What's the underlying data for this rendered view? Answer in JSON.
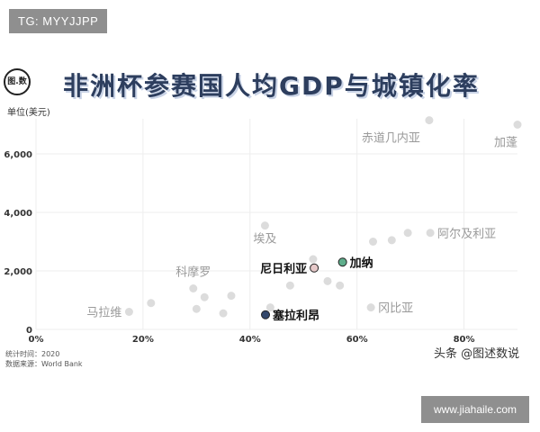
{
  "watermarks": {
    "top": "TG: MYYJJPP",
    "right": "头条 @图述数说",
    "bottom": "www.jiahaile.com"
  },
  "logo_text": "图.数",
  "footer": {
    "line1": "统计时间：2020",
    "line2": "数据来源：World Bank"
  },
  "chart_data": {
    "type": "scatter",
    "title": "非洲杯参赛国人均GDP与城镇化率",
    "ylabel": "单位(美元)",
    "xlabel": "",
    "xlim": [
      0,
      90
    ],
    "ylim": [
      0,
      7200
    ],
    "x_ticks": [
      0,
      20,
      40,
      60,
      80
    ],
    "x_tick_labels": [
      "0%",
      "20%",
      "40%",
      "60%",
      "80%"
    ],
    "y_ticks": [
      0,
      2000,
      4000,
      6000
    ],
    "y_tick_labels": [
      "0",
      "2,000",
      "4,000",
      "6,000"
    ],
    "grid": true,
    "colors": {
      "background_point": "#dcdcdc",
      "background_label": "#9a9a9a",
      "nigeria": "#e6c9c9",
      "gabon_highlight": "#5fae8c",
      "senegal": "#33476b",
      "highlight_label": "#111111"
    },
    "labeled_points": [
      {
        "label": "赤道几内亚",
        "x": 73.5,
        "y": 7150,
        "highlight": false
      },
      {
        "label": "加蓬",
        "x": 90.0,
        "y": 7000,
        "highlight": false
      },
      {
        "label": "阿尔及利亚",
        "x": 73.7,
        "y": 3300,
        "highlight": false
      },
      {
        "label": "埃及",
        "x": 42.8,
        "y": 3550,
        "highlight": false
      },
      {
        "label": "尼日利亚",
        "x": 52.0,
        "y": 2100,
        "highlight": true,
        "color": "nigeria"
      },
      {
        "label": "加纳",
        "x": 57.3,
        "y": 2300,
        "highlight": true,
        "color": "gabon_highlight"
      },
      {
        "label": "科摩罗",
        "x": 29.4,
        "y": 1400,
        "highlight": false
      },
      {
        "label": "冈比亚",
        "x": 62.6,
        "y": 750,
        "highlight": false
      },
      {
        "label": "马拉维",
        "x": 17.4,
        "y": 600,
        "highlight": false
      },
      {
        "label": "塞拉利昂",
        "x": 42.9,
        "y": 500,
        "highlight": true,
        "color": "senegal"
      }
    ],
    "other_points": [
      {
        "x": 21.5,
        "y": 900
      },
      {
        "x": 30.0,
        "y": 700
      },
      {
        "x": 31.5,
        "y": 1100
      },
      {
        "x": 35.0,
        "y": 550
      },
      {
        "x": 36.5,
        "y": 1150
      },
      {
        "x": 43.8,
        "y": 750
      },
      {
        "x": 47.5,
        "y": 1500
      },
      {
        "x": 51.8,
        "y": 2400
      },
      {
        "x": 54.5,
        "y": 1650
      },
      {
        "x": 56.8,
        "y": 1500
      },
      {
        "x": 63.0,
        "y": 3000
      },
      {
        "x": 66.5,
        "y": 3050
      },
      {
        "x": 69.5,
        "y": 3300
      }
    ]
  }
}
